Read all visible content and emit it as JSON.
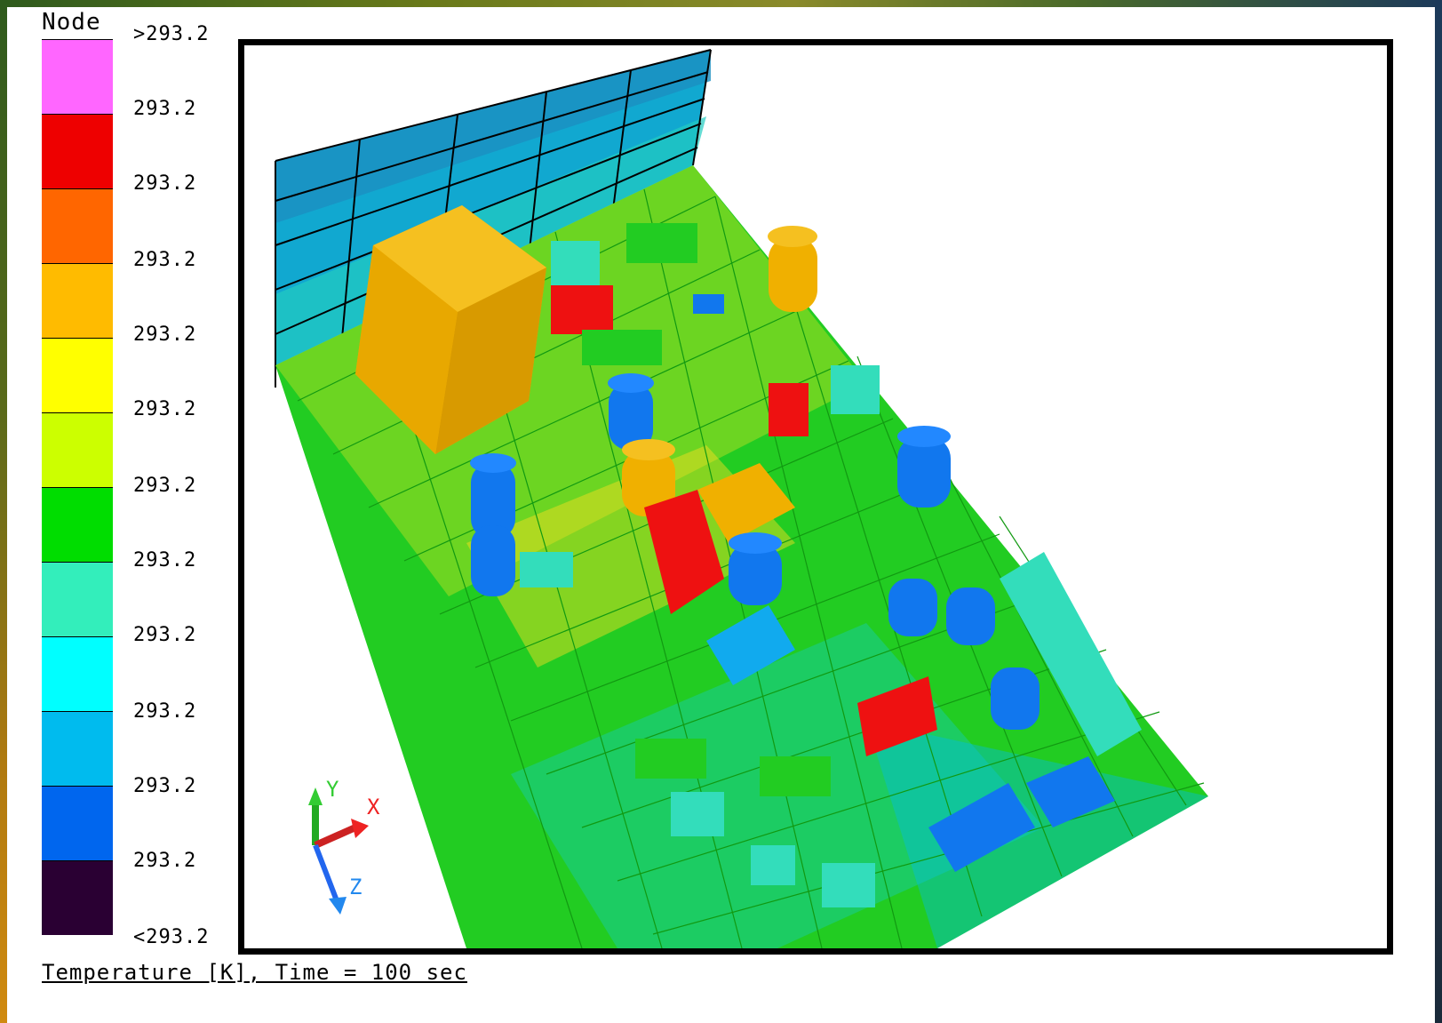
{
  "legend": {
    "title": "Node",
    "bands": [
      {
        "color": "#ff66ff"
      },
      {
        "color": "#ee0000"
      },
      {
        "color": "#ff6600"
      },
      {
        "color": "#ffbb00"
      },
      {
        "color": "#ffff00"
      },
      {
        "color": "#ccff00"
      },
      {
        "color": "#00dd00"
      },
      {
        "color": "#33eebb"
      },
      {
        "color": "#00ffff"
      },
      {
        "color": "#00bbee"
      },
      {
        "color": "#0066ee"
      },
      {
        "color": "#2a0033"
      }
    ],
    "labels": [
      ">293.2",
      "293.2",
      "293.2",
      "293.2",
      "293.2",
      "293.2",
      "293.2",
      "293.2",
      "293.2",
      "293.2",
      "293.2",
      "293.2",
      "<293.2"
    ]
  },
  "triad": {
    "x": "X",
    "y": "Y",
    "z": "Z"
  },
  "caption": "Temperature [K], Time = 100 sec"
}
